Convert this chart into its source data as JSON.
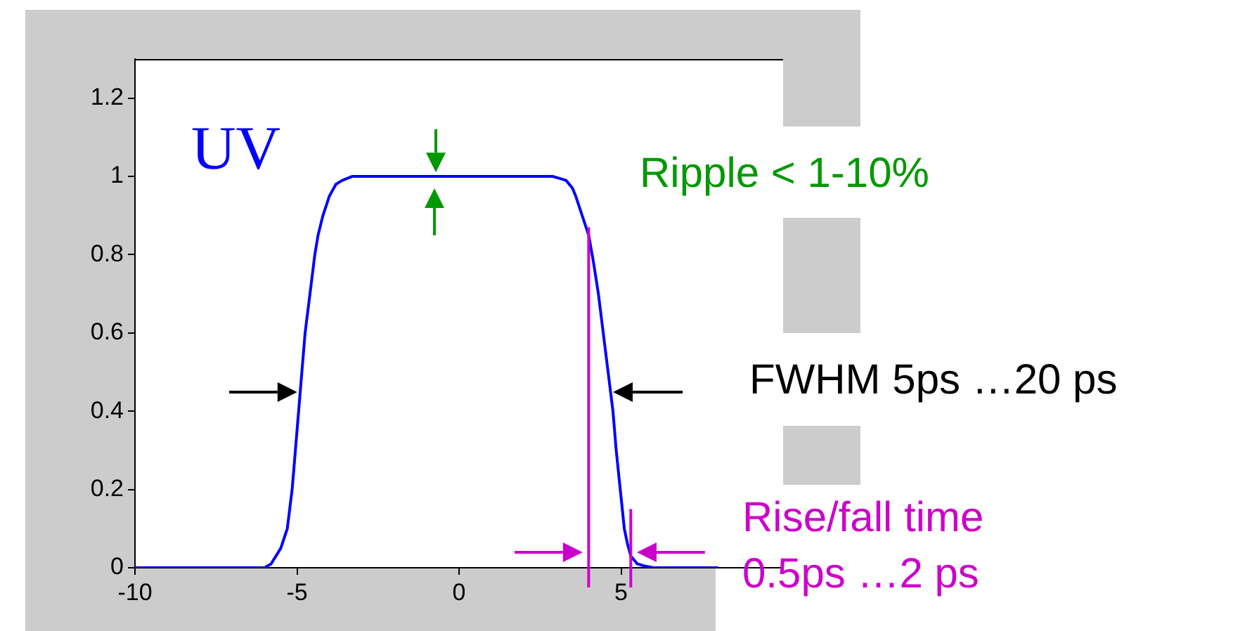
{
  "chart_data": {
    "type": "line",
    "x": [
      -10,
      -8,
      -6,
      -5.8,
      -5.5,
      -5.3,
      -5.15,
      -5.05,
      -4.95,
      -4.85,
      -4.75,
      -4.6,
      -4.45,
      -4.35,
      -4.2,
      -4,
      -3.8,
      -3.6,
      -3.3,
      -3,
      0,
      2.9,
      3.1,
      3.3,
      3.5,
      3.6,
      3.8,
      4,
      4.15,
      4.3,
      4.45,
      4.6,
      4.75,
      4.85,
      5,
      5.1,
      5.2,
      5.3,
      5.5,
      5.7,
      6,
      7,
      8
    ],
    "series": [
      {
        "name": "UV",
        "color": "#0000ff",
        "values": [
          0,
          0,
          0,
          0.01,
          0.05,
          0.1,
          0.2,
          0.3,
          0.4,
          0.5,
          0.6,
          0.7,
          0.8,
          0.85,
          0.9,
          0.95,
          0.98,
          0.99,
          1,
          1,
          1,
          1,
          0.995,
          0.99,
          0.97,
          0.95,
          0.9,
          0.85,
          0.78,
          0.7,
          0.6,
          0.5,
          0.4,
          0.3,
          0.18,
          0.1,
          0.06,
          0.03,
          0.01,
          0.005,
          0,
          0,
          0
        ]
      }
    ],
    "xlim": [
      -10,
      10
    ],
    "xticks": [
      -10,
      -5,
      0,
      5
    ],
    "ylim": [
      0,
      1.3
    ],
    "yticks": [
      0,
      0.2,
      0.4,
      0.6,
      0.8,
      1,
      1.2
    ],
    "grid": false,
    "legend": false,
    "marker": "none",
    "line_style": "solid",
    "ref_lines": [
      {
        "axis": "x",
        "value": 4,
        "color": "#cc00cc"
      },
      {
        "axis": "x",
        "value": 5.3,
        "color": "#cc00cc"
      }
    ],
    "annotations": [
      "Ripple < 1-10%",
      "FWHM 5ps …20 ps",
      "Rise/fall time 0.5ps …2 ps"
    ]
  }
}
